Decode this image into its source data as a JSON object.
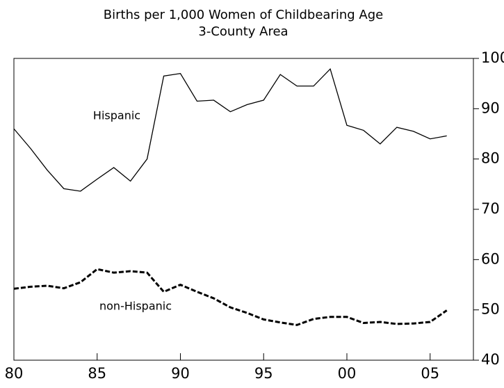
{
  "chart_data": {
    "type": "line",
    "title": "Births per 1,000 Women of Childbearing Age",
    "subtitle": "3-County Area",
    "x": [
      1980,
      1981,
      1982,
      1983,
      1984,
      1985,
      1986,
      1987,
      1988,
      1989,
      1990,
      1991,
      1992,
      1993,
      1994,
      1995,
      1996,
      1997,
      1998,
      1999,
      2000,
      2001,
      2002,
      2003,
      2004,
      2005,
      2006
    ],
    "series": [
      {
        "name": "Hispanic",
        "color": "#000000",
        "dash": "solid",
        "values": [
          86,
          82.1,
          77.8,
          74.1,
          73.6,
          76,
          78.3,
          75.6,
          80,
          96.5,
          97,
          91.5,
          91.7,
          89.4,
          90.8,
          91.7,
          96.8,
          94.5,
          94.5,
          97.9,
          86.7,
          85.7,
          83,
          86.3,
          85.5,
          84,
          84.6
        ]
      },
      {
        "name": "non-Hispanic",
        "color": "#000000",
        "dash": "dashed",
        "values": [
          54.2,
          54.6,
          54.8,
          54.3,
          55.5,
          58.1,
          57.4,
          57.7,
          57.4,
          53.6,
          55,
          53.6,
          52.3,
          50.5,
          49.4,
          48.1,
          47.5,
          47,
          48.2,
          48.6,
          48.6,
          47.4,
          47.6,
          47.2,
          47.3,
          47.6,
          49.9
        ]
      }
    ],
    "xlim": [
      1980,
      2007.6
    ],
    "xticks": [
      {
        "value": 1980,
        "label": "80"
      },
      {
        "value": 1985,
        "label": "85"
      },
      {
        "value": 1990,
        "label": "90"
      },
      {
        "value": 1995,
        "label": "95"
      },
      {
        "value": 2000,
        "label": "00"
      },
      {
        "value": 2005,
        "label": "05"
      }
    ],
    "ylim": [
      40,
      100
    ],
    "yticks": [
      40,
      50,
      60,
      70,
      80,
      90,
      100
    ],
    "y_axis_side": "right"
  }
}
